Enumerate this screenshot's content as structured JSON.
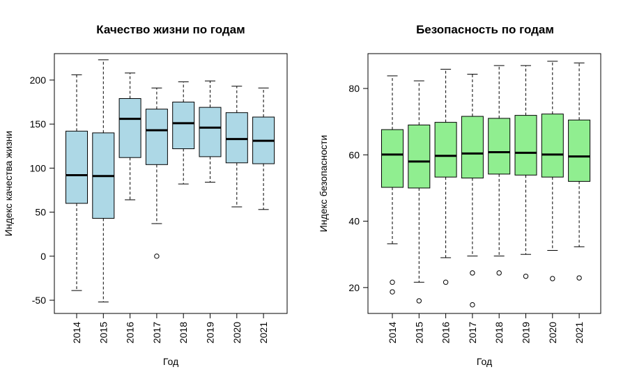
{
  "chart_data": [
    {
      "type": "boxplot",
      "title": "Качество жизни по годам",
      "xlabel": "Год",
      "ylabel": "Индекс качества жизни",
      "fill_color": "#add8e6",
      "categories": [
        "2014",
        "2015",
        "2016",
        "2017",
        "2018",
        "2019",
        "2020",
        "2021"
      ],
      "y_ticks": [
        -50,
        0,
        50,
        100,
        150,
        200
      ],
      "y_tick_labels": [
        "-50",
        "0",
        "50",
        "100",
        "150",
        "200"
      ],
      "ylim": [
        -65,
        230
      ],
      "boxes": [
        {
          "whisker_low": -39,
          "q1": 60,
          "median": 92,
          "q3": 142,
          "whisker_high": 206,
          "outliers": []
        },
        {
          "whisker_low": -52,
          "q1": 43,
          "median": 91,
          "q3": 140,
          "whisker_high": 223,
          "outliers": []
        },
        {
          "whisker_low": 64,
          "q1": 112,
          "median": 156,
          "q3": 179,
          "whisker_high": 208,
          "outliers": []
        },
        {
          "whisker_low": 37,
          "q1": 104,
          "median": 143,
          "q3": 167,
          "whisker_high": 191,
          "outliers": [
            0
          ]
        },
        {
          "whisker_low": 82,
          "q1": 122,
          "median": 151,
          "q3": 175,
          "whisker_high": 198,
          "outliers": []
        },
        {
          "whisker_low": 84,
          "q1": 113,
          "median": 146,
          "q3": 169,
          "whisker_high": 199,
          "outliers": []
        },
        {
          "whisker_low": 56,
          "q1": 106,
          "median": 133,
          "q3": 163,
          "whisker_high": 193,
          "outliers": []
        },
        {
          "whisker_low": 53,
          "q1": 105,
          "median": 131,
          "q3": 158,
          "whisker_high": 191,
          "outliers": []
        }
      ]
    },
    {
      "type": "boxplot",
      "title": "Безопасность по годам",
      "xlabel": "Год",
      "ylabel": "Индекс безопасности",
      "fill_color": "#90ee90",
      "categories": [
        "2014",
        "2015",
        "2016",
        "2017",
        "2018",
        "2019",
        "2020",
        "2021"
      ],
      "y_ticks": [
        20,
        40,
        60,
        80
      ],
      "y_tick_labels": [
        "20",
        "40",
        "60",
        "80"
      ],
      "ylim": [
        12.2,
        90.5
      ],
      "boxes": [
        {
          "whisker_low": 33.2,
          "q1": 50.2,
          "median": 60.1,
          "q3": 67.6,
          "whisker_high": 83.8,
          "outliers": [
            21.6,
            18.7
          ]
        },
        {
          "whisker_low": 21.6,
          "q1": 50.0,
          "median": 58.0,
          "q3": 69.0,
          "whisker_high": 82.3,
          "outliers": [
            16.0
          ]
        },
        {
          "whisker_low": 29.0,
          "q1": 53.3,
          "median": 59.7,
          "q3": 69.8,
          "whisker_high": 85.8,
          "outliers": [
            21.6
          ]
        },
        {
          "whisker_low": 29.5,
          "q1": 53.0,
          "median": 60.4,
          "q3": 71.6,
          "whisker_high": 84.3,
          "outliers": [
            24.4,
            14.8
          ]
        },
        {
          "whisker_low": 29.5,
          "q1": 54.2,
          "median": 60.8,
          "q3": 71.0,
          "whisker_high": 86.9,
          "outliers": [
            24.4
          ]
        },
        {
          "whisker_low": 30.0,
          "q1": 53.9,
          "median": 60.6,
          "q3": 71.9,
          "whisker_high": 86.9,
          "outliers": [
            23.4
          ]
        },
        {
          "whisker_low": 31.2,
          "q1": 53.3,
          "median": 60.1,
          "q3": 72.3,
          "whisker_high": 88.2,
          "outliers": [
            22.7
          ]
        },
        {
          "whisker_low": 32.3,
          "q1": 52.0,
          "median": 59.5,
          "q3": 70.5,
          "whisker_high": 87.7,
          "outliers": [
            22.9
          ]
        }
      ]
    }
  ]
}
